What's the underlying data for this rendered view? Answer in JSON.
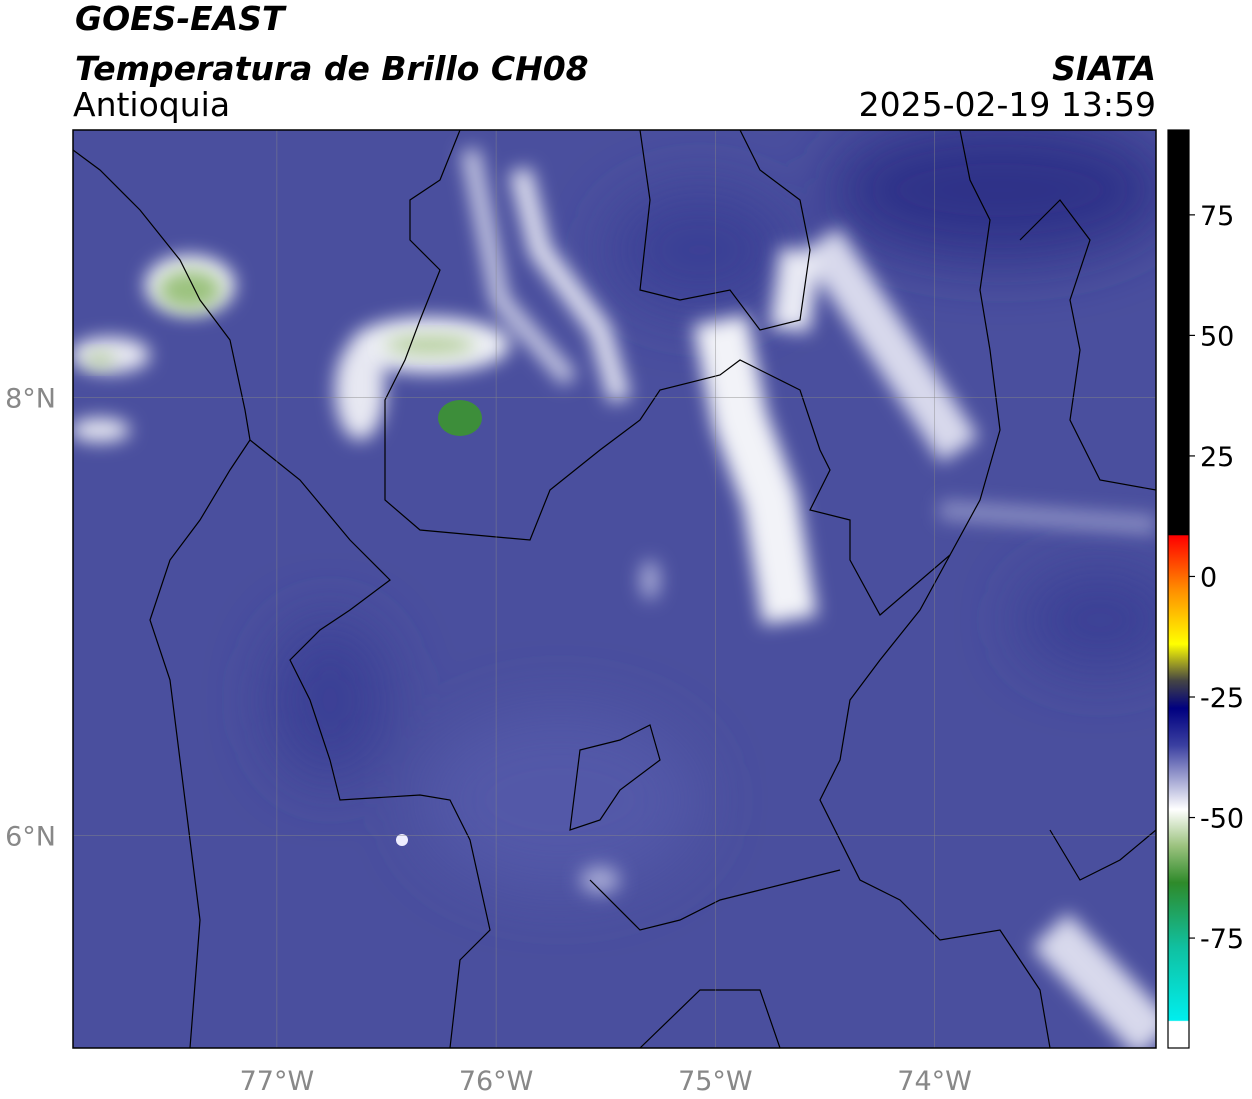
{
  "header": {
    "title": "GOES-EAST",
    "subtitle": "Temperatura de Brillo CH08",
    "region": "Antioquia",
    "source": "SIATA",
    "timestamp": "2025-02-19 13:59"
  },
  "map": {
    "xlim": [
      -77.93,
      -72.99
    ],
    "ylim": [
      5.03,
      9.22
    ],
    "xticks": [
      {
        "value": -77,
        "label": "77°W"
      },
      {
        "value": -76,
        "label": "76°W"
      },
      {
        "value": -75,
        "label": "75°W"
      },
      {
        "value": -74,
        "label": "74°W"
      }
    ],
    "yticks": [
      {
        "value": 8,
        "label": "8°N"
      },
      {
        "value": 6,
        "label": "6°N"
      }
    ],
    "grid": true
  },
  "colorbar": {
    "lim": [
      -97.8,
      92.6
    ],
    "ticks": [
      75,
      50,
      25,
      0,
      -25,
      -50,
      -75
    ]
  }
}
